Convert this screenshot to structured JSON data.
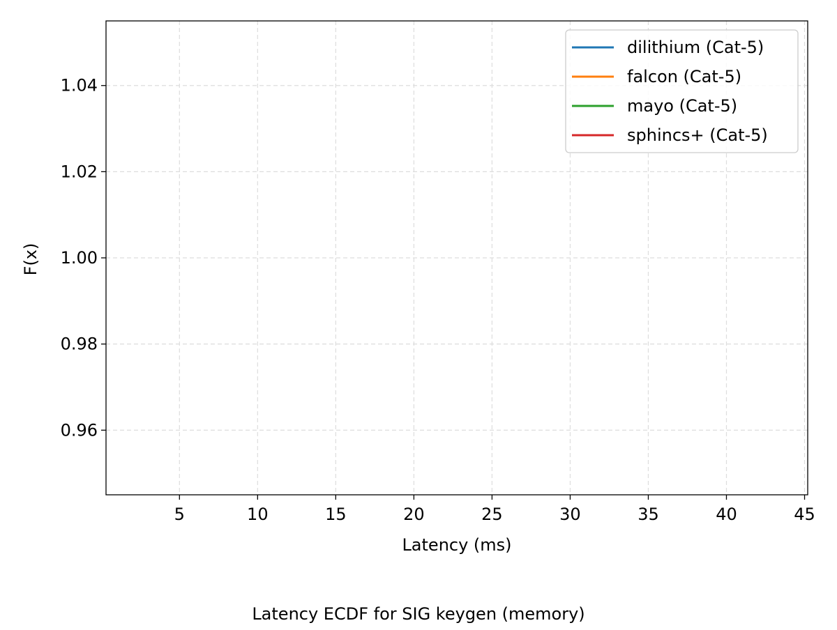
{
  "chart_data": {
    "type": "line",
    "title": "",
    "caption": "Latency ECDF for SIG keygen (memory)",
    "xlabel": "Latency (ms)",
    "ylabel": "F(x)",
    "xlim": [
      0.3,
      45.2
    ],
    "ylim": [
      0.945,
      1.055
    ],
    "xticks": [
      5,
      10,
      15,
      20,
      25,
      30,
      35,
      40,
      45
    ],
    "yticks": [
      0.96,
      0.98,
      1.0,
      1.02,
      1.04
    ],
    "ytick_labels": [
      "0.96",
      "0.98",
      "1.00",
      "1.02",
      "1.04"
    ],
    "grid": true,
    "legend_position": "top-right",
    "series": [
      {
        "name": "dilithium (Cat-5)",
        "color": "#1f77b4",
        "x": [],
        "y": []
      },
      {
        "name": "falcon (Cat-5)",
        "color": "#ff7f0e",
        "x": [],
        "y": []
      },
      {
        "name": "mayo (Cat-5)",
        "color": "#2ca02c",
        "x": [],
        "y": []
      },
      {
        "name": "sphincs+ (Cat-5)",
        "color": "#d62728",
        "x": [],
        "y": []
      }
    ]
  }
}
